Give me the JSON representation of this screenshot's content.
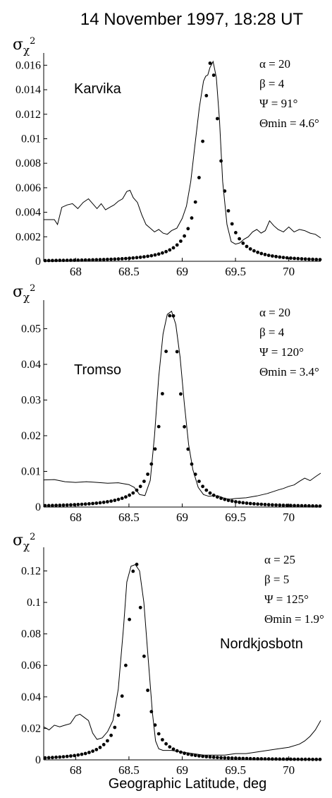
{
  "title": "14 November 1997, 18:28 UT",
  "xlabel": "Geographic Latitude, deg",
  "ylabel": {
    "main": "σ",
    "sub": "χ",
    "sup": "2"
  },
  "chart_data": [
    {
      "type": "line",
      "station": "Karvika",
      "params": [
        "α = 20",
        "β = 4",
        "Ψ = 91°",
        "Θmin = 4.6°"
      ],
      "xlim": [
        67.7,
        70.3
      ],
      "ylim": [
        0,
        0.017
      ],
      "xticks": [
        68,
        68.5,
        69,
        69.5,
        70
      ],
      "xtick_labels": [
        "68",
        "68.5",
        "69",
        "69.5",
        "70"
      ],
      "yticks": [
        0,
        0.002,
        0.004,
        0.006,
        0.008,
        0.01,
        0.012,
        0.014,
        0.016
      ],
      "ytick_labels": [
        "0",
        "0.002",
        "0.004",
        "0.006",
        "0.008",
        "0.01",
        "0.012",
        "0.014",
        "0.016"
      ],
      "model_peak": {
        "center": 69.27,
        "amplitude": 0.0163,
        "half_width": 0.095
      },
      "series": [
        {
          "style": "solid-line",
          "x": [
            67.7,
            67.8,
            67.83,
            67.87,
            67.92,
            67.97,
            68.02,
            68.07,
            68.12,
            68.15,
            68.2,
            68.24,
            68.28,
            68.32,
            68.36,
            68.4,
            68.44,
            68.48,
            68.51,
            68.54,
            68.58,
            68.62,
            68.66,
            68.7,
            68.74,
            68.78,
            68.82,
            68.86,
            68.9,
            68.95,
            69.0,
            69.04,
            69.08,
            69.12,
            69.16,
            69.2,
            69.22,
            69.24,
            69.26,
            69.29,
            69.32,
            69.35,
            69.38,
            69.42,
            69.46,
            69.5,
            69.54,
            69.58,
            69.62,
            69.66,
            69.7,
            69.74,
            69.78,
            69.82,
            69.86,
            69.9,
            69.95,
            70.0,
            70.05,
            70.1,
            70.15,
            70.2,
            70.25,
            70.3
          ],
          "y": [
            0.0034,
            0.0034,
            0.003,
            0.0044,
            0.0046,
            0.0047,
            0.0043,
            0.0048,
            0.0051,
            0.0048,
            0.0043,
            0.0047,
            0.0042,
            0.0044,
            0.0046,
            0.0049,
            0.0051,
            0.0057,
            0.0058,
            0.0052,
            0.0048,
            0.0038,
            0.003,
            0.0027,
            0.0024,
            0.0026,
            0.0023,
            0.0022,
            0.0025,
            0.0027,
            0.0035,
            0.0045,
            0.0065,
            0.0095,
            0.0125,
            0.0147,
            0.0151,
            0.0152,
            0.0158,
            0.0163,
            0.015,
            0.0115,
            0.0065,
            0.003,
            0.0016,
            0.0014,
            0.0015,
            0.0018,
            0.002,
            0.0024,
            0.0026,
            0.0023,
            0.0025,
            0.0033,
            0.0029,
            0.0026,
            0.0024,
            0.0028,
            0.0024,
            0.0026,
            0.0025,
            0.0023,
            0.0022,
            0.0019
          ]
        }
      ]
    },
    {
      "type": "line",
      "station": "Tromso",
      "params": [
        "α = 20",
        "β = 4",
        "Ψ = 120°",
        "Θmin = 3.4°"
      ],
      "xlim": [
        67.7,
        70.3
      ],
      "ylim": [
        0,
        0.058
      ],
      "xticks": [
        68,
        68.5,
        69,
        69.5,
        70
      ],
      "xtick_labels": [
        "68",
        "68.5",
        "69",
        "69.5",
        "70"
      ],
      "yticks": [
        0,
        0.01,
        0.02,
        0.03,
        0.04,
        0.05
      ],
      "ytick_labels": [
        "0",
        "0.01",
        "0.02",
        "0.03",
        "0.04",
        "0.05"
      ],
      "model_peak": {
        "center": 68.9,
        "amplitude": 0.0552,
        "half_width": 0.1
      },
      "series": [
        {
          "style": "solid-line",
          "x": [
            67.7,
            67.8,
            67.9,
            68.0,
            68.1,
            68.2,
            68.3,
            68.4,
            68.5,
            68.55,
            68.6,
            68.65,
            68.7,
            68.74,
            68.78,
            68.82,
            68.86,
            68.9,
            68.94,
            68.98,
            69.02,
            69.06,
            69.1,
            69.15,
            69.2,
            69.25,
            69.3,
            69.35,
            69.4,
            69.45,
            69.5,
            69.6,
            69.7,
            69.8,
            69.85,
            69.9,
            69.95,
            70.0,
            70.05,
            70.1,
            70.15,
            70.2,
            70.25,
            70.3
          ],
          "y": [
            0.0076,
            0.0077,
            0.0071,
            0.0069,
            0.0071,
            0.0069,
            0.0067,
            0.0068,
            0.0063,
            0.0055,
            0.0035,
            0.0032,
            0.0075,
            0.02,
            0.0365,
            0.0485,
            0.054,
            0.0549,
            0.0512,
            0.042,
            0.029,
            0.0175,
            0.0105,
            0.0055,
            0.0035,
            0.003,
            0.0032,
            0.003,
            0.0024,
            0.0022,
            0.0024,
            0.0026,
            0.0031,
            0.0038,
            0.0043,
            0.0048,
            0.0052,
            0.0058,
            0.0062,
            0.0072,
            0.0081,
            0.0074,
            0.0085,
            0.0095
          ]
        }
      ]
    },
    {
      "type": "line",
      "station": "Nordkjosbotn",
      "params": [
        "α = 25",
        "β = 5",
        "Ψ = 125°",
        "Θmin = 1.9°"
      ],
      "xlim": [
        67.7,
        70.3
      ],
      "ylim": [
        0,
        0.135
      ],
      "xticks": [
        68,
        68.5,
        69,
        69.5,
        70
      ],
      "xtick_labels": [
        "68",
        "68.5",
        "69",
        "69.5",
        "70"
      ],
      "yticks": [
        0,
        0.02,
        0.04,
        0.06,
        0.08,
        0.1,
        0.12
      ],
      "ytick_labels": [
        "0",
        "0.02",
        "0.04",
        "0.06",
        "0.08",
        "0.1",
        "0.12"
      ],
      "model_peak": {
        "center": 68.56,
        "amplitude": 0.1272,
        "half_width": 0.085
      },
      "series": [
        {
          "style": "solid-line",
          "x": [
            67.7,
            67.75,
            67.8,
            67.85,
            67.9,
            67.95,
            68.0,
            68.04,
            68.08,
            68.12,
            68.16,
            68.2,
            68.25,
            68.3,
            68.35,
            68.4,
            68.45,
            68.48,
            68.52,
            68.56,
            68.6,
            68.64,
            68.68,
            68.72,
            68.75,
            68.78,
            68.82,
            68.9,
            69.0,
            69.1,
            69.2,
            69.3,
            69.4,
            69.5,
            69.6,
            69.7,
            69.8,
            69.9,
            70.0,
            70.1,
            70.15,
            70.2,
            70.25,
            70.3
          ],
          "y": [
            0.021,
            0.019,
            0.022,
            0.021,
            0.022,
            0.023,
            0.028,
            0.029,
            0.027,
            0.025,
            0.017,
            0.013,
            0.014,
            0.018,
            0.025,
            0.045,
            0.085,
            0.113,
            0.123,
            0.124,
            0.12,
            0.1,
            0.065,
            0.03,
            0.012,
            0.007,
            0.006,
            0.006,
            0.005,
            0.004,
            0.003,
            0.003,
            0.003,
            0.004,
            0.004,
            0.005,
            0.006,
            0.007,
            0.008,
            0.01,
            0.012,
            0.015,
            0.019,
            0.025
          ]
        }
      ]
    }
  ]
}
